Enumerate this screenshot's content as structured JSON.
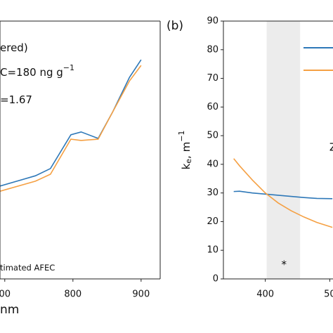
{
  "chart_data": [
    {
      "type": "line",
      "xticks": [
        {
          "value": 700,
          "label": "00"
        },
        800,
        900
      ],
      "xlim": [
        693,
        928
      ],
      "ylim": [
        0,
        100
      ],
      "x_label": "nm",
      "annotations": [
        {
          "text": "ered)"
        },
        {
          "text": "C=180 ng g",
          "sup": "−1"
        },
        {
          "text": "=1.67"
        },
        {
          "text": "timated AFEC"
        }
      ],
      "x": [
        693,
        745,
        767,
        797,
        812,
        837,
        858,
        883,
        900
      ],
      "series": [
        {
          "color": "#2e78b8",
          "values": [
            36,
            40,
            42.8,
            55.9,
            57,
            54.5,
            64.6,
            78.2,
            85
          ]
        },
        {
          "color": "#f5a043",
          "values": [
            34,
            37.9,
            40.6,
            54.2,
            53.7,
            54.2,
            64.6,
            76.8,
            82.8
          ]
        }
      ]
    },
    {
      "type": "line",
      "title": "(b)",
      "xticks": [
        400,
        {
          "value": 500,
          "label": "50"
        }
      ],
      "xlim": [
        335,
        505
      ],
      "ylim": [
        0,
        90
      ],
      "yticks": [
        0,
        10,
        20,
        30,
        40,
        50,
        60,
        70,
        80,
        90
      ],
      "y_label": {
        "main": "k",
        "sub": "e",
        "rest": ", m",
        "sup": "−1"
      },
      "shaded_band": [
        402,
        454
      ],
      "annotations": [
        {
          "text": "*",
          "x": 429,
          "y": 5
        },
        {
          "text": "Z",
          "x": 505,
          "y": 46
        }
      ],
      "x": [
        351,
        360,
        380,
        400,
        420,
        440,
        460,
        480,
        504
      ],
      "series": [
        {
          "color": "#2e78b8",
          "values": [
            30.5,
            30.6,
            30.0,
            29.6,
            29.2,
            28.8,
            28.4,
            28.1,
            28.0
          ]
        },
        {
          "color": "#f5a043",
          "values": [
            42,
            39.5,
            34.5,
            30.0,
            26.5,
            23.8,
            21.6,
            19.7,
            18.0
          ]
        }
      ]
    }
  ]
}
